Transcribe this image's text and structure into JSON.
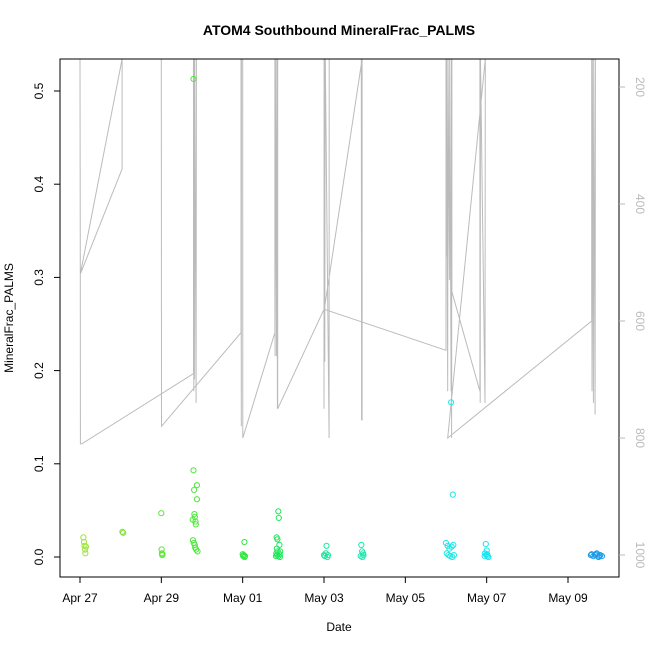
{
  "chart_data": {
    "type": "scatter",
    "title": "ATOM4 Southbound MineralFrac_PALMS",
    "xlabel": "Date",
    "ylabel": "MineralFrac_PALMS",
    "x_ticks": [
      "Apr 27",
      "Apr 29",
      "May 01",
      "May 03",
      "May 05",
      "May 07",
      "May 09"
    ],
    "y_ticks": [
      "0.0",
      "0.1",
      "0.2",
      "0.3",
      "0.4",
      "0.5"
    ],
    "y2_ticks": [
      "200",
      "400",
      "600",
      "800",
      "1000"
    ],
    "grid": false,
    "colors": {
      "axis": "#000000",
      "altitude": "#bbbbbb",
      "secondary_axis": "#bbbbbb"
    },
    "series": [
      {
        "points": [
          [
            "Apr 27 02:00",
            0.021,
            "#9be53a"
          ],
          [
            "Apr 27 02:20",
            0.016,
            "#9be53a"
          ],
          [
            "Apr 27 02:40",
            0.012,
            "#9be53a"
          ],
          [
            "Apr 27 03:00",
            0.008,
            "#9be53a"
          ],
          [
            "Apr 27 03:10",
            0.004,
            "#9be53a"
          ],
          [
            "Apr 27 03:30",
            0.011,
            "#9be53a"
          ],
          [
            "Apr 28 01:00",
            0.027,
            "#7ee33a"
          ],
          [
            "Apr 28 01:30",
            0.026,
            "#7ee33a"
          ],
          [
            "Apr 29 00:00",
            0.047,
            "#5ee83a"
          ],
          [
            "Apr 29 00:10",
            0.008,
            "#5ee83a"
          ],
          [
            "Apr 29 00:20",
            0.004,
            "#5ee83a"
          ],
          [
            "Apr 29 00:30",
            0.002,
            "#5ee83a"
          ],
          [
            "Apr 29 00:40",
            0.003,
            "#5ee83a"
          ],
          [
            "Apr 29 19:00",
            0.513,
            "#4ee83a"
          ],
          [
            "Apr 29 19:00",
            0.093,
            "#4ee83a"
          ],
          [
            "Apr 29 19:20",
            0.072,
            "#4ee83a"
          ],
          [
            "Apr 29 19:30",
            0.046,
            "#4ee83a"
          ],
          [
            "Apr 29 19:50",
            0.043,
            "#4ee83a"
          ],
          [
            "Apr 29 20:10",
            0.038,
            "#4ee83a"
          ],
          [
            "Apr 29 20:20",
            0.035,
            "#4ee83a"
          ],
          [
            "Apr 29 21:00",
            0.077,
            "#4ee83a"
          ],
          [
            "Apr 29 21:00",
            0.062,
            "#4ee83a"
          ],
          [
            "Apr 29 18:30",
            0.04,
            "#4ee83a"
          ],
          [
            "Apr 29 18:40",
            0.018,
            "#4ee83a"
          ],
          [
            "Apr 29 19:10",
            0.015,
            "#4ee83a"
          ],
          [
            "Apr 29 19:40",
            0.013,
            "#4ee83a"
          ],
          [
            "Apr 29 20:00",
            0.01,
            "#4ee83a"
          ],
          [
            "Apr 29 20:30",
            0.008,
            "#4ee83a"
          ],
          [
            "Apr 29 21:20",
            0.006,
            "#4ee83a"
          ],
          [
            "May 01 00:00",
            0.003,
            "#2ee83e"
          ],
          [
            "May 01 00:20",
            0.001,
            "#2ee83e"
          ],
          [
            "May 01 00:40",
            0.002,
            "#2ee83e"
          ],
          [
            "May 01 01:00",
            0.016,
            "#2ee83e"
          ],
          [
            "May 01 01:10",
            0.0,
            "#2ee83e"
          ],
          [
            "May 01 01:20",
            0.001,
            "#2ee83e"
          ],
          [
            "May 01 20:00",
            0.021,
            "#1ee85a"
          ],
          [
            "May 01 20:30",
            0.019,
            "#1ee85a"
          ],
          [
            "May 01 21:00",
            0.049,
            "#1ee85a"
          ],
          [
            "May 01 21:20",
            0.042,
            "#1ee85a"
          ],
          [
            "May 01 21:40",
            0.013,
            "#1ee85a"
          ],
          [
            "May 01 20:10",
            0.009,
            "#1ee85a"
          ],
          [
            "May 01 20:40",
            0.006,
            "#1ee85a"
          ],
          [
            "May 01 19:50",
            0.004,
            "#1ee85a"
          ],
          [
            "May 01 20:20",
            0.002,
            "#1ee85a"
          ],
          [
            "May 01 21:10",
            0.001,
            "#1ee85a"
          ],
          [
            "May 01 22:00",
            0.0,
            "#1ee85a"
          ],
          [
            "May 01 22:10",
            0.006,
            "#1ee85a"
          ],
          [
            "May 01 19:40",
            0.001,
            "#1ee85a"
          ],
          [
            "May 01 21:50",
            0.003,
            "#1ee85a"
          ],
          [
            "May 03 00:00",
            0.002,
            "#1de8a0"
          ],
          [
            "May 03 00:30",
            0.001,
            "#1de8a0"
          ],
          [
            "May 03 01:00",
            0.004,
            "#1de8a0"
          ],
          [
            "May 03 01:30",
            0.012,
            "#1de8a0"
          ],
          [
            "May 03 02:00",
            0.0,
            "#1de8a0"
          ],
          [
            "May 03 02:20",
            0.002,
            "#1de8a0"
          ],
          [
            "May 03 22:00",
            0.013,
            "#1de8b0"
          ],
          [
            "May 03 22:30",
            0.006,
            "#1de8b0"
          ],
          [
            "May 03 23:00",
            0.004,
            "#1de8b0"
          ],
          [
            "May 03 21:40",
            0.001,
            "#1de8b0"
          ],
          [
            "May 03 22:40",
            0.0,
            "#1de8b0"
          ],
          [
            "May 03 23:20",
            0.002,
            "#1de8b0"
          ],
          [
            "May 06 03:00",
            0.166,
            "#1ee8e8"
          ],
          [
            "May 06 04:00",
            0.067,
            "#1ee8e8"
          ],
          [
            "May 06 00:00",
            0.015,
            "#1ee8e8"
          ],
          [
            "May 06 01:00",
            0.012,
            "#1ee8e8"
          ],
          [
            "May 06 02:00",
            0.009,
            "#1ee8e8"
          ],
          [
            "May 06 03:20",
            0.011,
            "#1ee8e8"
          ],
          [
            "May 06 04:20",
            0.013,
            "#1ee8e8"
          ],
          [
            "May 06 00:30",
            0.004,
            "#1ee8e8"
          ],
          [
            "May 06 01:30",
            0.002,
            "#1ee8e8"
          ],
          [
            "May 06 02:30",
            0.001,
            "#1ee8e8"
          ],
          [
            "May 06 03:40",
            0.0,
            "#1ee8e8"
          ],
          [
            "May 06 04:40",
            0.002,
            "#1ee8e8"
          ],
          [
            "May 06 23:30",
            0.014,
            "#1ee4ee"
          ],
          [
            "May 07 00:00",
            0.007,
            "#1ee4ee"
          ],
          [
            "May 06 23:00",
            0.004,
            "#1ee4ee"
          ],
          [
            "May 06 23:45",
            0.002,
            "#1ee4ee"
          ],
          [
            "May 07 00:30",
            0.001,
            "#1ee4ee"
          ],
          [
            "May 07 01:00",
            0.0,
            "#1ee4ee"
          ],
          [
            "May 06 22:50",
            0.001,
            "#1ee4ee"
          ],
          [
            "May 07 00:15",
            0.003,
            "#1ee4ee"
          ],
          [
            "May 09 14:00",
            0.003,
            "#1a9ae8"
          ],
          [
            "May 09 15:00",
            0.001,
            "#1a9ae8"
          ],
          [
            "May 09 16:00",
            0.002,
            "#1a9ae8"
          ],
          [
            "May 09 17:00",
            0.004,
            "#1a9ae8"
          ],
          [
            "May 09 18:00",
            0.0,
            "#1a9ae8"
          ],
          [
            "May 09 19:00",
            0.002,
            "#1a9ae8"
          ],
          [
            "May 09 20:00",
            0.001,
            "#1a9ae8"
          ],
          [
            "May 09 13:30",
            0.002,
            "#1a9ae8"
          ],
          [
            "May 09 16:30",
            0.003,
            "#1a9ae8"
          ],
          [
            "May 09 18:30",
            0.001,
            "#1a9ae8"
          ]
        ]
      }
    ],
    "altitude_trace": [
      [
        "Apr 27 00:00",
        150
      ],
      [
        "Apr 27 00:10",
        520
      ],
      [
        "Apr 28 00:50",
        340
      ],
      [
        "Apr 28 00:50",
        150
      ],
      [
        "Apr 27 00:10",
        520
      ],
      [
        "Apr 27 00:15",
        810
      ],
      [
        "Apr 27 01:00",
        810
      ],
      [
        "Apr 29 19:00",
        690
      ],
      [
        "Apr 29 19:00",
        150
      ],
      [
        "Apr 29 19:10",
        720
      ],
      [
        "Apr 29 19:20",
        150
      ],
      [
        "Apr 29 19:30",
        700
      ],
      [
        "Apr 29 19:40",
        150
      ],
      [
        "Apr 29 20:30",
        740
      ],
      [
        "Apr 29 20:40",
        150
      ],
      [
        "Apr 29 00:00",
        150
      ],
      [
        "Apr 29 00:05",
        780
      ],
      [
        "Apr 30 23:00",
        620
      ],
      [
        "Apr 30 23:00",
        150
      ],
      [
        "Apr 30 23:10",
        780
      ],
      [
        "Apr 30 23:15",
        150
      ],
      [
        "May 01 00:00",
        150
      ],
      [
        "May 01 00:05",
        800
      ],
      [
        "May 01 19:00",
        620
      ],
      [
        "May 01 19:00",
        150
      ],
      [
        "May 01 19:10",
        660
      ],
      [
        "May 01 19:20",
        150
      ],
      [
        "May 01 20:00",
        660
      ],
      [
        "May 01 20:10",
        150
      ],
      [
        "May 01 20:30",
        750
      ],
      [
        "May 01 20:40",
        150
      ],
      [
        "May 01 20:40",
        750
      ],
      [
        "May 03 00:00",
        580
      ],
      [
        "May 03 00:00",
        750
      ],
      [
        "May 03 00:05",
        150
      ],
      [
        "May 03 00:10",
        540
      ],
      [
        "May 03 00:20",
        150
      ],
      [
        "May 03 00:30",
        670
      ],
      [
        "May 03 00:40",
        150
      ],
      [
        "May 03 00:45",
        150
      ],
      [
        "May 03 03:00",
        800
      ],
      [
        "May 03 03:05",
        150
      ],
      [
        "May 03 22:00",
        150
      ],
      [
        "May 03 22:10",
        770
      ],
      [
        "May 03 22:20",
        150
      ],
      [
        "May 03 22:30",
        770
      ],
      [
        "May 03 22:30",
        150
      ],
      [
        "May 03 00:10",
        580
      ],
      [
        "May 06 00:00",
        650
      ],
      [
        "May 06 00:00",
        150
      ],
      [
        "May 06 00:10",
        490
      ],
      [
        "May 06 00:20",
        150
      ],
      [
        "May 06 01:00",
        720
      ],
      [
        "May 06 01:10",
        150
      ],
      [
        "May 06 02:00",
        530
      ],
      [
        "May 06 02:10",
        150
      ],
      [
        "May 06 03:00",
        720
      ],
      [
        "May 06 03:10",
        150
      ],
      [
        "May 06 03:20",
        800
      ],
      [
        "May 06 03:30",
        150
      ],
      [
        "May 06 03:30",
        550
      ],
      [
        "May 06 20:00",
        720
      ],
      [
        "May 06 20:00",
        150
      ],
      [
        "May 06 20:10",
        740
      ],
      [
        "May 06 20:20",
        150
      ],
      [
        "May 06 23:00",
        740
      ],
      [
        "May 06 23:10",
        150
      ],
      [
        "May 06 01:00",
        800
      ],
      [
        "May 09 14:00",
        600
      ],
      [
        "May 09 14:00",
        150
      ],
      [
        "May 09 14:10",
        720
      ],
      [
        "May 09 14:20",
        150
      ],
      [
        "May 09 15:00",
        740
      ],
      [
        "May 09 15:10",
        150
      ],
      [
        "May 09 16:00",
        760
      ],
      [
        "May 09 16:10",
        150
      ]
    ]
  }
}
